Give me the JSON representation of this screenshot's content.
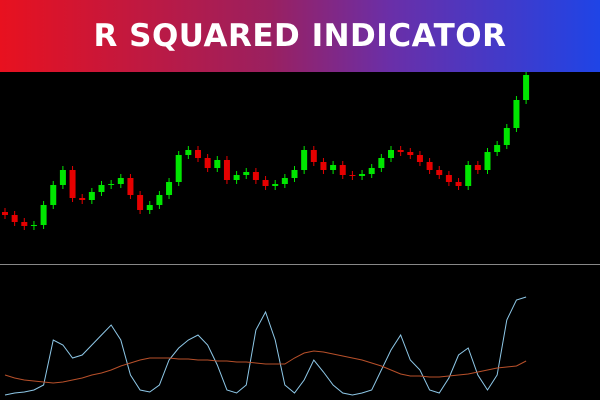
{
  "chart_data": [
    {
      "type": "candlestick",
      "title": "R SQUARED INDICATOR",
      "open": [
        53,
        50,
        43,
        39,
        40,
        60,
        80,
        95,
        67,
        65,
        73,
        80,
        81,
        87,
        70,
        55,
        60,
        70,
        83,
        110,
        115,
        107,
        97,
        105,
        85,
        90,
        93,
        85,
        79,
        81,
        87,
        95,
        115,
        103,
        95,
        100,
        90,
        89,
        91,
        97,
        107,
        115,
        113,
        110,
        103,
        95,
        90,
        83,
        79,
        100,
        95,
        113,
        120,
        137,
        165
      ],
      "high": [
        57,
        54,
        47,
        44,
        64,
        84,
        99,
        99,
        71,
        77,
        84,
        85,
        91,
        91,
        74,
        64,
        74,
        87,
        114,
        119,
        119,
        111,
        109,
        109,
        94,
        97,
        97,
        89,
        85,
        91,
        99,
        119,
        119,
        107,
        104,
        104,
        94,
        95,
        101,
        111,
        119,
        119,
        117,
        114,
        107,
        99,
        94,
        87,
        104,
        104,
        117,
        124,
        141,
        169,
        255
      ],
      "low": [
        46,
        39,
        35,
        35,
        36,
        56,
        76,
        63,
        61,
        61,
        69,
        76,
        77,
        66,
        51,
        51,
        56,
        66,
        79,
        106,
        103,
        93,
        93,
        81,
        81,
        86,
        81,
        75,
        75,
        77,
        83,
        91,
        99,
        91,
        91,
        86,
        85,
        85,
        87,
        93,
        103,
        109,
        106,
        99,
        91,
        86,
        79,
        75,
        75,
        91,
        91,
        109,
        116,
        133,
        161
      ],
      "close": [
        50,
        43,
        39,
        40,
        60,
        80,
        95,
        67,
        65,
        73,
        80,
        81,
        87,
        70,
        55,
        60,
        70,
        83,
        110,
        115,
        107,
        97,
        105,
        85,
        90,
        93,
        85,
        79,
        81,
        87,
        95,
        115,
        103,
        95,
        100,
        90,
        89,
        91,
        97,
        107,
        115,
        113,
        110,
        103,
        95,
        90,
        83,
        79,
        100,
        95,
        113,
        120,
        137,
        165,
        190
      ],
      "up_color": "#00e600",
      "down_color": "#e60000",
      "ylim": [
        0,
        265
      ]
    },
    {
      "type": "line",
      "series": [
        {
          "color": "#8ec8e8",
          "values": [
            3,
            5,
            6,
            8,
            13,
            58,
            53,
            40,
            43,
            53,
            63,
            73,
            58,
            23,
            8,
            6,
            13,
            38,
            50,
            58,
            63,
            53,
            33,
            8,
            5,
            13,
            68,
            86,
            58,
            13,
            5,
            18,
            38,
            26,
            13,
            5,
            3,
            5,
            8,
            28,
            48,
            63,
            38,
            28,
            8,
            5,
            20,
            43,
            50,
            23,
            8,
            23,
            78,
            98,
            101
          ]
        },
        {
          "color": "#b8502a",
          "values": [
            23,
            20,
            18,
            17,
            16,
            15,
            16,
            18,
            20,
            23,
            25,
            28,
            32,
            35,
            38,
            40,
            40,
            40,
            39,
            39,
            38,
            38,
            37,
            37,
            36,
            36,
            35,
            34,
            34,
            34,
            40,
            45,
            47,
            46,
            44,
            42,
            40,
            38,
            35,
            32,
            28,
            24,
            22,
            22,
            21,
            21,
            22,
            23,
            24,
            26,
            28,
            30,
            31,
            32,
            37
          ]
        }
      ],
      "ylim": [
        0,
        110
      ]
    }
  ]
}
